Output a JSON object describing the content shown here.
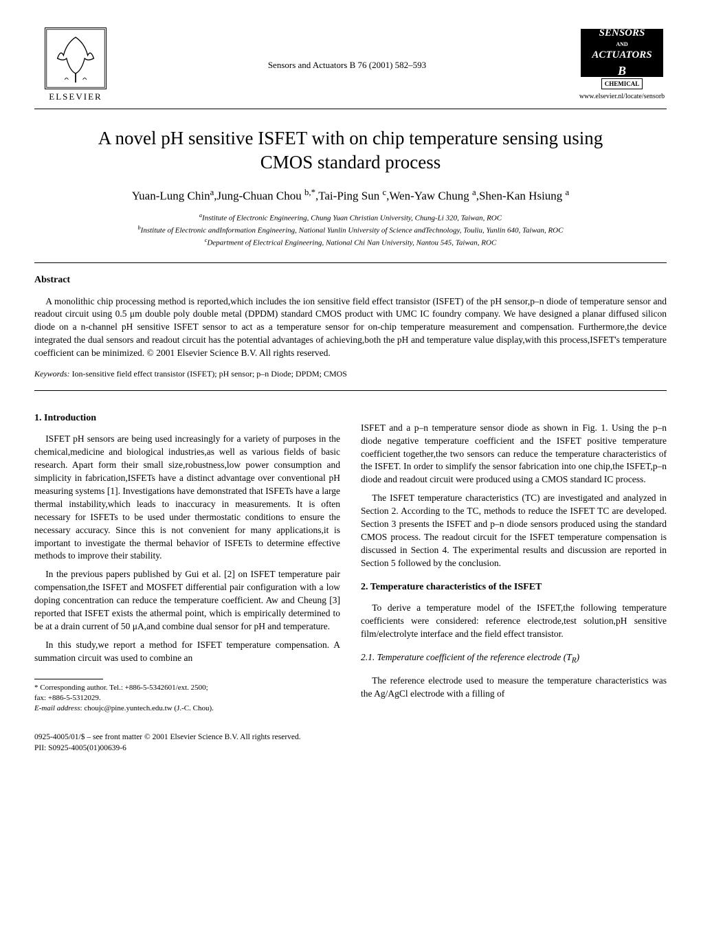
{
  "header": {
    "publisher": "ELSEVIER",
    "journal_ref": "Sensors and Actuators B 76 (2001) 582–593",
    "logo_top": "SENSORS",
    "logo_mid": "ACTUATORS",
    "logo_b": "B",
    "logo_chemical": "CHEMICAL",
    "www": "www.elsevier.nl/locate/sensorb"
  },
  "title": "A novel pH sensitive ISFET with on chip temperature sensing using CMOS standard process",
  "authors_html": "Yuan-Lung Chin<sup>a</sup>,Jung-Chuan Chou <sup>b,*</sup>,Tai-Ping Sun <sup>c</sup>,Wen-Yaw Chung <sup>a</sup>,Shen-Kan Hsiung <sup>a</sup>",
  "affiliations": {
    "a": "Institute of Electronic Engineering, Chung Yuan Christian University, Chung-Li 320, Taiwan, ROC",
    "b": "Institute of Electronic andInformation Engineering, National Yunlin University of Science andTechnology, Touliu, Yunlin 640, Taiwan, ROC",
    "c": "Department of Electrical Engineering, National Chi Nan University, Nantou 545, Taiwan, ROC"
  },
  "abstract": {
    "heading": "Abstract",
    "text": "A monolithic chip processing method is reported,which includes the ion sensitive field effect transistor (ISFET) of the pH sensor,p–n diode of temperature sensor and readout circuit using 0.5 μm double poly double metal (DPDM) standard CMOS product with UMC IC foundry company. We have designed a planar diffused silicon diode on a n-channel pH sensitive ISFET sensor to act as a temperature sensor for on-chip temperature measurement and compensation. Furthermore,the device integrated the dual sensors and readout circuit has the potential advantages of achieving,both the pH and temperature value display,with this process,ISFET's temperature coefficient can be minimized. © 2001 Elsevier Science B.V. All rights reserved."
  },
  "keywords": {
    "label": "Keywords:",
    "content": " Ion-sensitive field effect transistor (ISFET); pH sensor; p–n Diode; DPDM; CMOS"
  },
  "sections": {
    "s1_heading": "1. Introduction",
    "s1_p1": "ISFET pH sensors are being used increasingly for a variety of purposes in the chemical,medicine and biological industries,as well as various fields of basic research. Apart form their small size,robustness,low power consumption and simplicity in fabrication,ISFETs have a distinct advantage over conventional pH measuring systems [1]. Investigations have demonstrated that ISFETs have a large thermal instability,which leads to inaccuracy in measurements. It is often necessary for ISFETs to be used under thermostatic conditions to ensure the necessary accuracy. Since this is not convenient for many applications,it is important to investigate the thermal behavior of ISFETs to determine effective methods to improve their stability.",
    "s1_p2": "In the previous papers published by Gui et al. [2] on ISFET temperature pair compensation,the ISFET and MOSFET differential pair configuration with a low doping concentration can reduce the temperature coefficient. Aw and Cheung [3] reported that ISFET exists the athermal point, which is empirically determined to be at a drain current of 50 μA,and combine dual sensor for pH and temperature.",
    "s1_p3": "In this study,we report a method for ISFET temperature compensation. A summation circuit was used to combine an",
    "s1_p4_right": "ISFET and a p–n temperature sensor diode as shown in Fig. 1. Using the p–n diode negative temperature coefficient and the ISFET positive temperature coefficient together,the two sensors can reduce the temperature characteristics of the ISFET. In order to simplify the sensor fabrication into one chip,the ISFET,p–n diode and readout circuit were produced using a CMOS standard IC process.",
    "s1_p5_right": "The ISFET temperature characteristics (TC) are investigated and analyzed in Section 2. According to the TC, methods to reduce the ISFET TC are developed. Section 3 presents the ISFET and p–n diode sensors produced using the standard CMOS process. The readout circuit for the ISFET temperature compensation is discussed in Section 4. The experimental results and discussion are reported in Section 5 followed by the conclusion.",
    "s2_heading": "2. Temperature characteristics of the ISFET",
    "s2_p1": "To derive a temperature model of the ISFET,the following temperature coefficients were considered: reference electrode,test solution,pH sensitive film/electrolyte interface and the field effect transistor.",
    "s2_1_heading": "2.1. Temperature coefficient of the reference electrode (T",
    "s2_1_heading_sub": "R",
    "s2_1_heading_close": ")",
    "s2_1_p1": "The reference electrode used to measure the temperature characteristics was the Ag/AgCl electrode with a filling of"
  },
  "footnote": {
    "corr": "* Corresponding author. Tel.: +886-5-5342601/ext. 2500;",
    "fax": "fax: +886-5-5312029.",
    "email_label": "E-mail address",
    "email": ": choujc@pine.yuntech.edu.tw (J.-C. Chou)."
  },
  "footer": {
    "line1": "0925-4005/01/$ – see front matter © 2001 Elsevier Science B.V. All rights reserved.",
    "line2": "PII: S0925-4005(01)00639-6"
  }
}
